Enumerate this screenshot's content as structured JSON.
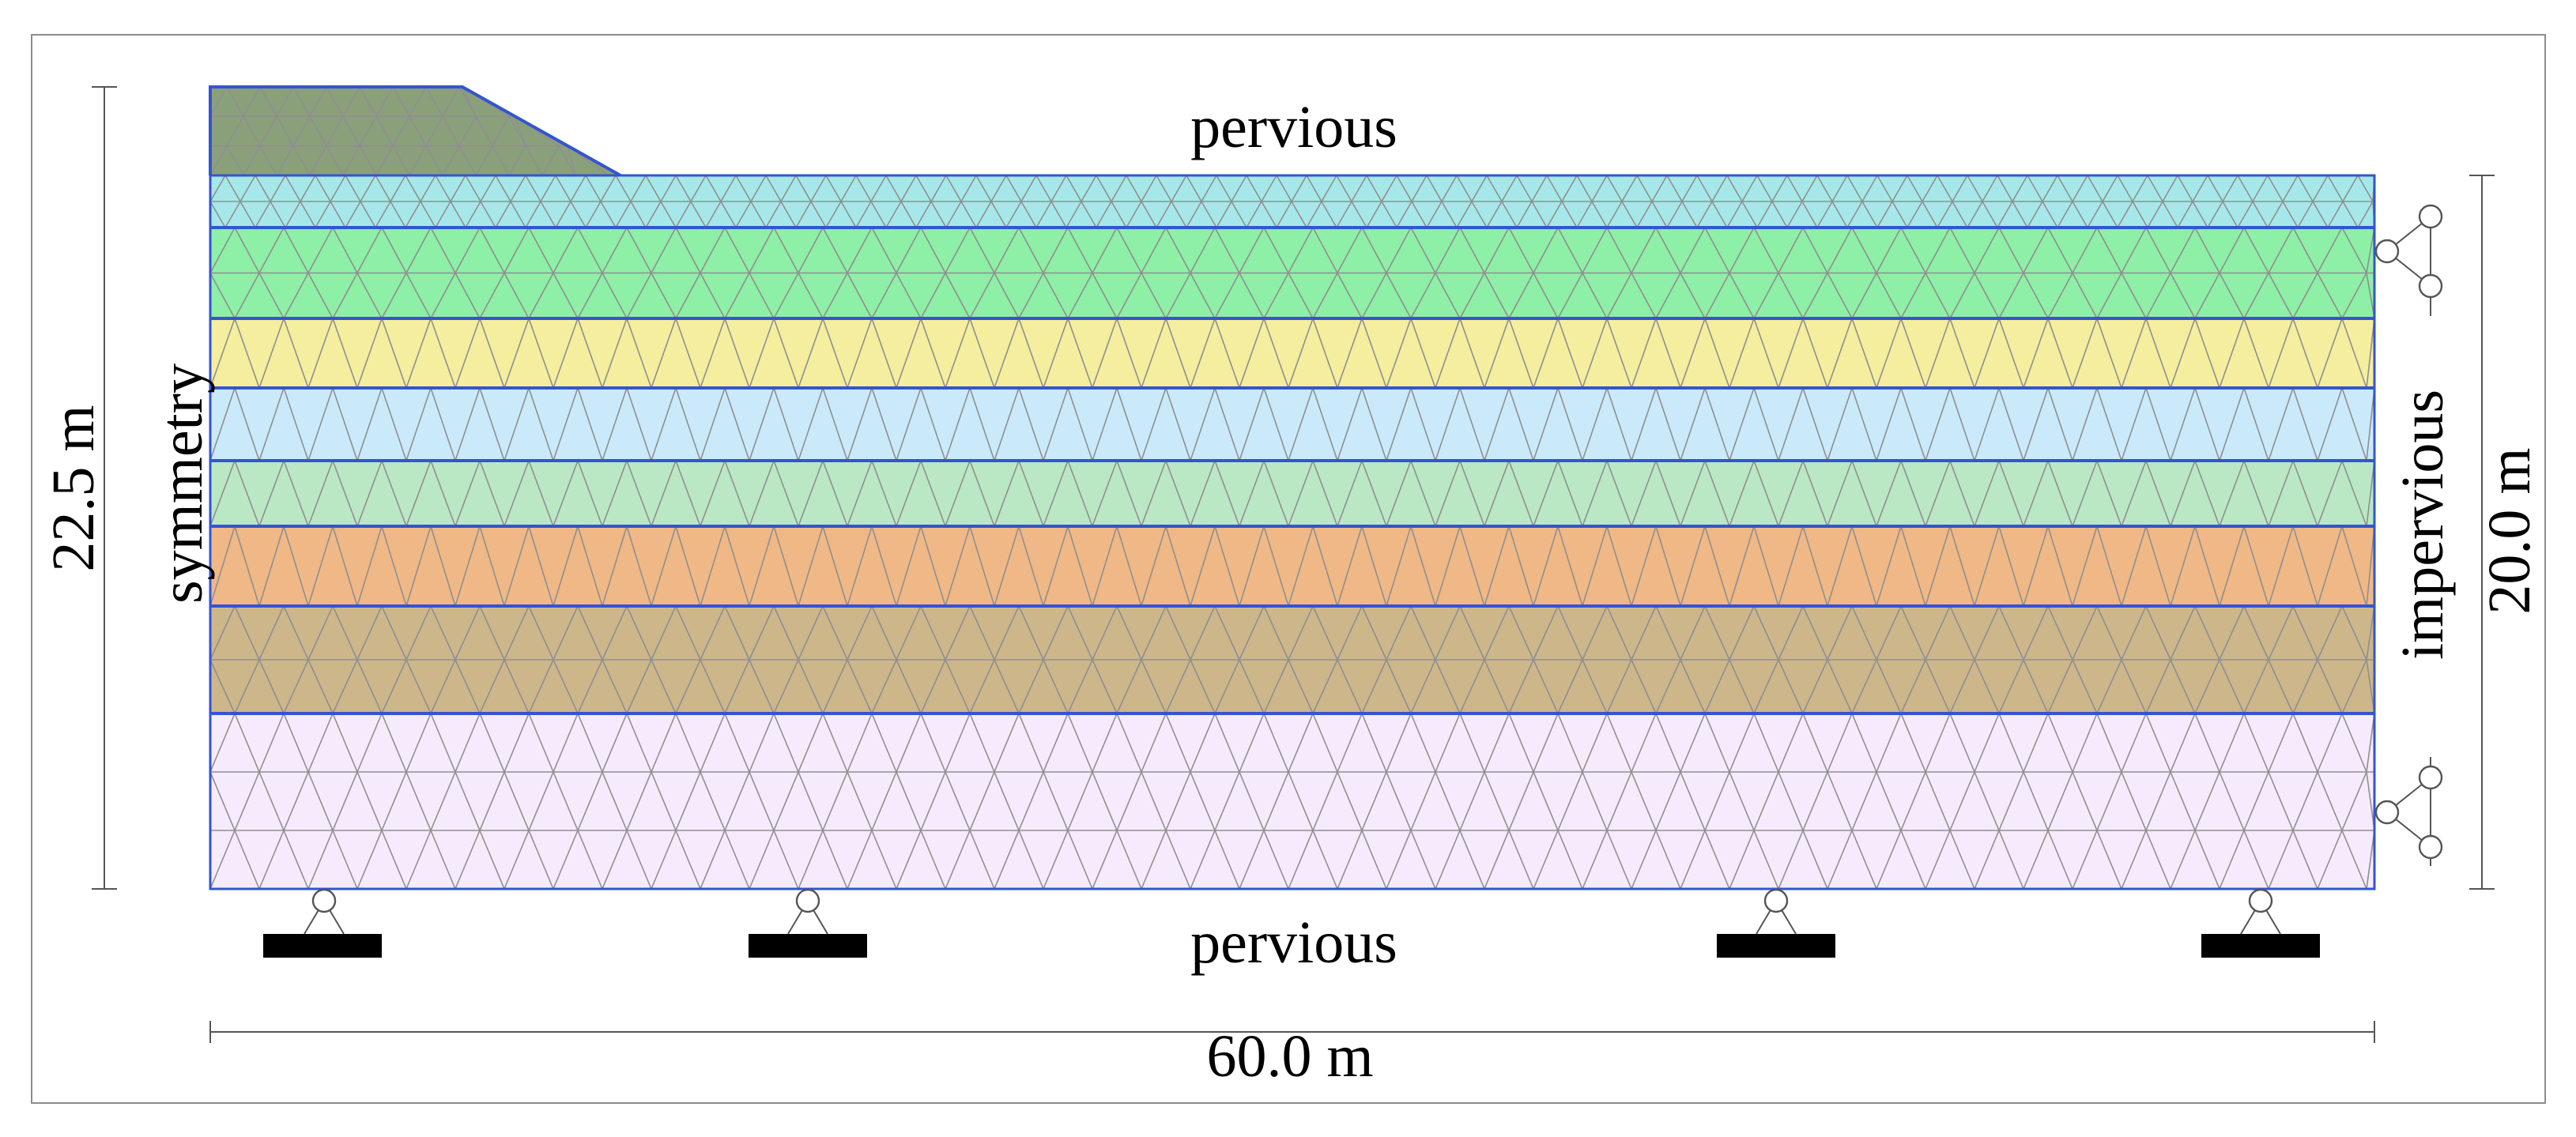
{
  "labels": {
    "top_boundary": "pervious",
    "bottom_boundary": "pervious",
    "left_boundary": "symmetry",
    "right_boundary": "impervious",
    "total_height": "22.5 m",
    "ground_height": "20.0 m",
    "width": "60.0 m"
  },
  "model": {
    "width_m": 60.0,
    "total_height_m": 22.5,
    "ground_height_m": 20.0,
    "embankment_height_m": 2.5
  },
  "layers": [
    {
      "name": "embankment",
      "color": "#8aa07b"
    },
    {
      "name": "layer-1",
      "color": "#a6e8ea"
    },
    {
      "name": "layer-2",
      "color": "#8eefa6"
    },
    {
      "name": "layer-3",
      "color": "#f4ee9e"
    },
    {
      "name": "layer-4",
      "color": "#caeafc"
    },
    {
      "name": "layer-5",
      "color": "#bae8c4"
    },
    {
      "name": "layer-6",
      "color": "#f0b886"
    },
    {
      "name": "layer-7",
      "color": "#cdb68a"
    },
    {
      "name": "layer-8",
      "color": "#f6ebfc"
    }
  ],
  "colors": {
    "mesh": "#8f8f8f",
    "layer_boundary": "#3355d0",
    "support_block": "#000000"
  }
}
